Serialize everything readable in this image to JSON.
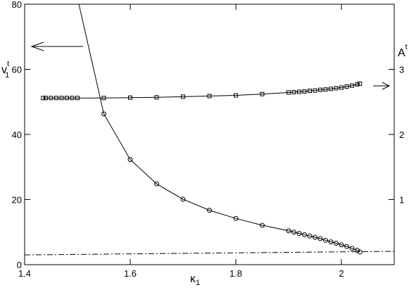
{
  "chart_data": {
    "type": "line",
    "x_label": {
      "text": "κ",
      "sub": "1"
    },
    "y_label": {
      "text": "v",
      "sup": "t",
      "sub": "1"
    },
    "y2_label": {
      "text": "A",
      "sup": "t"
    },
    "xlim": [
      1.4,
      2.1
    ],
    "xticks": [
      1.4,
      1.6,
      1.8,
      2
    ],
    "ylim": [
      0,
      80
    ],
    "yticks": [
      0,
      20,
      40,
      60,
      80
    ],
    "y2lim": [
      0,
      4
    ],
    "y2ticks": [
      1,
      2,
      3
    ],
    "series": [
      {
        "marker": "circle",
        "color": "#000000",
        "line": "solid",
        "x": [
          1.5,
          1.55,
          1.6,
          1.65,
          1.7,
          1.75,
          1.8,
          1.85,
          1.9,
          1.91,
          1.92,
          1.93,
          1.94,
          1.95,
          1.96,
          1.97,
          1.98,
          1.99,
          2.0,
          2.01,
          2.02,
          2.03,
          2.035
        ],
        "values": [
          82,
          46.3,
          32.3,
          24.8,
          20.1,
          16.7,
          14.2,
          12.1,
          10.4,
          10.0,
          9.6,
          9.2,
          8.8,
          8.4,
          8.0,
          7.5,
          7.0,
          6.6,
          6.1,
          5.6,
          5.0,
          4.4,
          3.9
        ]
      },
      {
        "marker": "square",
        "color": "#000000",
        "line": "solid",
        "axis": "y2",
        "x": [
          1.435,
          1.44,
          1.45,
          1.46,
          1.47,
          1.48,
          1.49,
          1.5,
          1.55,
          1.6,
          1.65,
          1.7,
          1.75,
          1.8,
          1.85,
          1.9,
          1.91,
          1.92,
          1.93,
          1.94,
          1.95,
          1.96,
          1.97,
          1.98,
          1.99,
          2.0,
          2.01,
          2.02,
          2.03,
          2.035
        ],
        "values": [
          2.56,
          2.56,
          2.56,
          2.56,
          2.56,
          2.56,
          2.56,
          2.56,
          2.56,
          2.565,
          2.57,
          2.58,
          2.59,
          2.6,
          2.62,
          2.645,
          2.65,
          2.655,
          2.66,
          2.67,
          2.675,
          2.685,
          2.69,
          2.7,
          2.71,
          2.72,
          2.735,
          2.75,
          2.77,
          2.78
        ]
      },
      {
        "marker": null,
        "color": "#000000",
        "line": "dashdot",
        "x": [
          1.4,
          2.1
        ],
        "values": [
          3.0,
          4.1
        ]
      }
    ]
  }
}
